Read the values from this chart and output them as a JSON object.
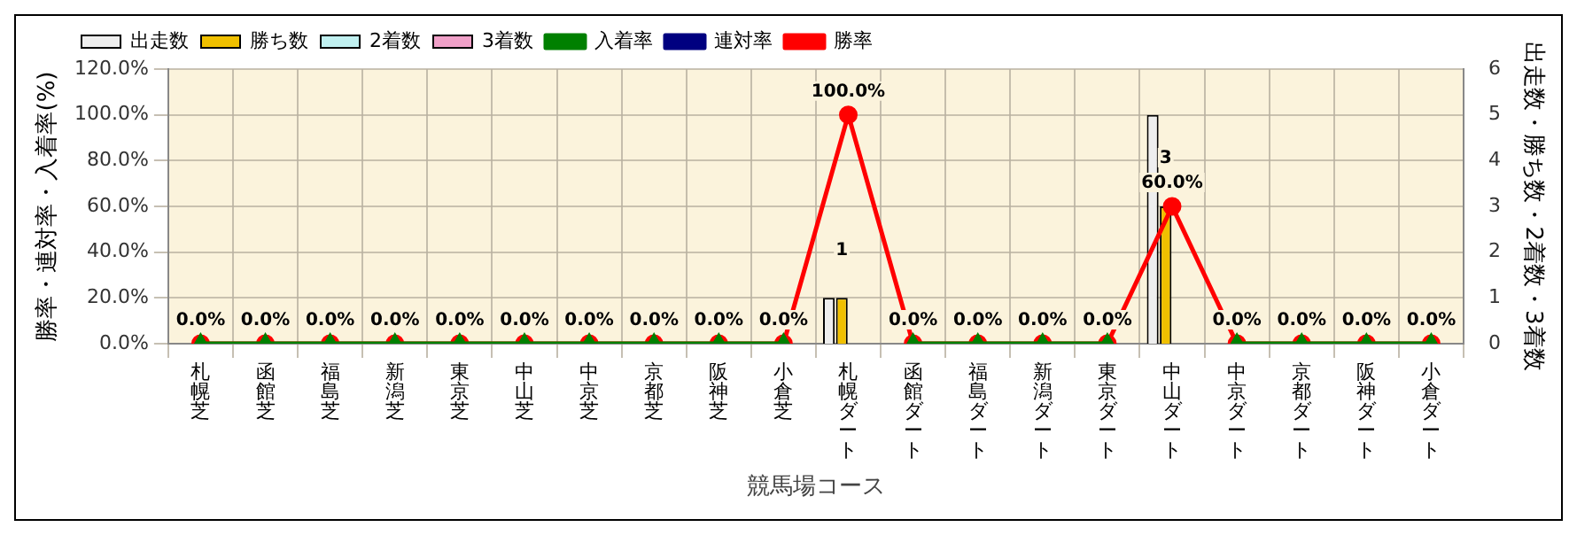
{
  "chart_data": {
    "type": "bar",
    "xlabel": "競馬場コース",
    "ylabel": "勝率・連対率・入着率(%)",
    "y2label": "出走数・勝ち数・2着数・3着数",
    "categories": [
      "札幌芝",
      "函館芝",
      "福島芝",
      "新潟芝",
      "東京芝",
      "中山芝",
      "中京芝",
      "京都芝",
      "阪神芝",
      "小倉芝",
      "札幌ダート",
      "函館ダート",
      "福島ダート",
      "新潟ダート",
      "東京ダート",
      "中山ダート",
      "中京ダート",
      "京都ダート",
      "阪神ダート",
      "小倉ダート"
    ],
    "series": [
      {
        "name": "出走数",
        "axis": "y2",
        "color": "#eeeeee",
        "values": [
          0,
          0,
          0,
          0,
          0,
          0,
          0,
          0,
          0,
          0,
          1,
          0,
          0,
          0,
          0,
          5,
          0,
          0,
          0,
          0
        ]
      },
      {
        "name": "勝ち数",
        "axis": "y2",
        "color": "#f0c000",
        "values": [
          0,
          0,
          0,
          0,
          0,
          0,
          0,
          0,
          0,
          0,
          1,
          0,
          0,
          0,
          0,
          3,
          0,
          0,
          0,
          0
        ],
        "value_labels": [
          null,
          null,
          null,
          null,
          null,
          null,
          null,
          null,
          null,
          null,
          "1",
          null,
          null,
          null,
          null,
          "3",
          null,
          null,
          null,
          null
        ]
      },
      {
        "name": "2着数",
        "axis": "y2",
        "color": "#c0f0f0",
        "values": [
          0,
          0,
          0,
          0,
          0,
          0,
          0,
          0,
          0,
          0,
          0,
          0,
          0,
          0,
          0,
          0,
          0,
          0,
          0,
          0
        ]
      },
      {
        "name": "3着数",
        "axis": "y2",
        "color": "#f0a0c8",
        "values": [
          0,
          0,
          0,
          0,
          0,
          0,
          0,
          0,
          0,
          0,
          0,
          0,
          0,
          0,
          0,
          0,
          0,
          0,
          0,
          0
        ]
      },
      {
        "name": "入着率",
        "type": "line",
        "marker": "triangle",
        "color": "#008000",
        "values": [
          0,
          0,
          0,
          0,
          0,
          0,
          0,
          0,
          0,
          0,
          null,
          0,
          0,
          0,
          0,
          null,
          0,
          0,
          0,
          0
        ]
      },
      {
        "name": "連対率",
        "type": "line",
        "marker": "diamond",
        "color": "#000080",
        "values": [
          null,
          null,
          null,
          null,
          null,
          null,
          null,
          null,
          null,
          null,
          null,
          null,
          null,
          null,
          null,
          null,
          null,
          null,
          null,
          null
        ]
      },
      {
        "name": "勝率",
        "type": "line",
        "marker": "circle",
        "color": "#ff0000",
        "values": [
          0,
          0,
          0,
          0,
          0,
          0,
          0,
          0,
          0,
          0,
          100,
          0,
          0,
          0,
          0,
          60,
          0,
          0,
          0,
          0
        ],
        "value_labels": [
          "0.0%",
          "0.0%",
          "0.0%",
          "0.0%",
          "0.0%",
          "0.0%",
          "0.0%",
          "0.0%",
          "0.0%",
          "0.0%",
          "100.0%",
          "0.0%",
          "0.0%",
          "0.0%",
          "0.0%",
          "60.0%",
          "0.0%",
          "0.0%",
          "0.0%",
          "0.0%"
        ]
      }
    ],
    "ylim": [
      0,
      120
    ],
    "yticks": [
      {
        "value": 0,
        "label": "0.0%"
      },
      {
        "value": 20,
        "label": "20.0%"
      },
      {
        "value": 40,
        "label": "40.0%"
      },
      {
        "value": 60,
        "label": "60.0%"
      },
      {
        "value": 80,
        "label": "80.0%"
      },
      {
        "value": 100,
        "label": "100.0%"
      },
      {
        "value": 120,
        "label": "120.0%"
      }
    ],
    "y2lim": [
      0,
      6
    ],
    "y2ticks": [
      0,
      1,
      2,
      3,
      4,
      5,
      6
    ],
    "grid": true,
    "legend": "top left"
  }
}
